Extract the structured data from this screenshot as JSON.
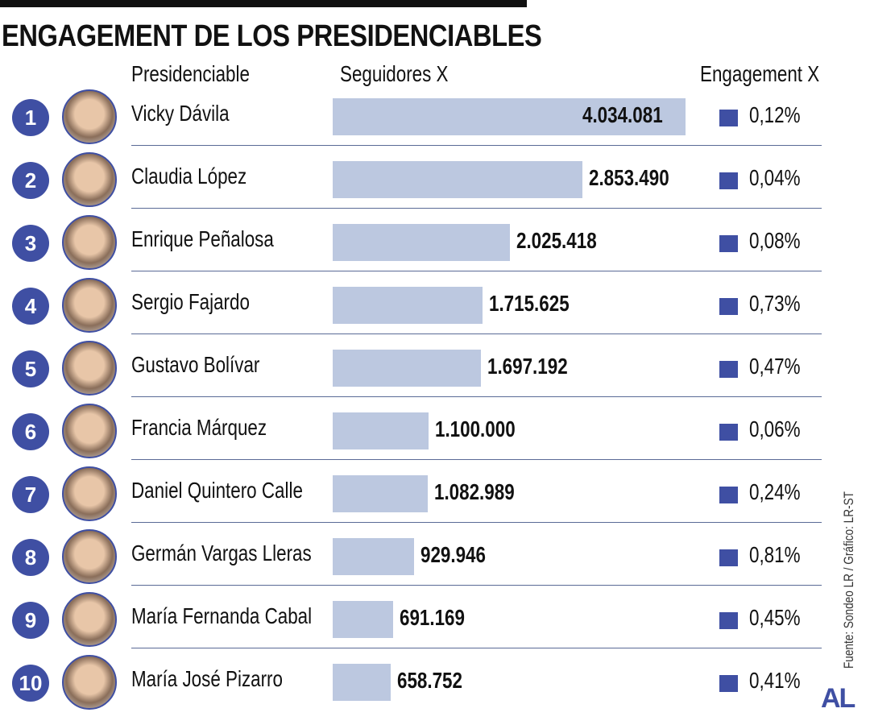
{
  "title": "ENGAGEMENT DE LOS PRESIDENCIABLES",
  "headers": {
    "name": "Presidenciable",
    "followers": "Seguidores X",
    "engagement": "Engagement X"
  },
  "colors": {
    "accent": "#3f4fa3",
    "bar": "#bcc8e0"
  },
  "chart_data": {
    "type": "bar",
    "title": "ENGAGEMENT DE LOS PRESIDENCIABLES",
    "categories": [
      "Vicky Dávila",
      "Claudia López",
      "Enrique Peñalosa",
      "Sergio Fajardo",
      "Gustavo Bolívar",
      "Francia Márquez",
      "Daniel Quintero Calle",
      "Germán Vargas Lleras",
      "María Fernanda Cabal",
      "María José Pizarro"
    ],
    "ranks": [
      "1",
      "2",
      "3",
      "4",
      "5",
      "6",
      "7",
      "8",
      "9",
      "10"
    ],
    "values": [
      4034081,
      2853490,
      2025418,
      1715625,
      1697192,
      1100000,
      1082989,
      929946,
      691169,
      658752
    ],
    "value_labels": [
      "4.034.081",
      "2.853.490",
      "2.025.418",
      "1.715.625",
      "1.697.192",
      "1.100.000",
      "1.082.989",
      "929.946",
      "691.169",
      "658.752"
    ],
    "engagement": [
      "0,12%",
      "0,04%",
      "0,08%",
      "0,73%",
      "0,47%",
      "0,06%",
      "0,24%",
      "0,81%",
      "0,45%",
      "0,41%"
    ],
    "xlim": [
      0,
      4034081
    ]
  },
  "source": "Fuente: Sondeo LR / Gráfico: LR-ST",
  "logo": "AL"
}
